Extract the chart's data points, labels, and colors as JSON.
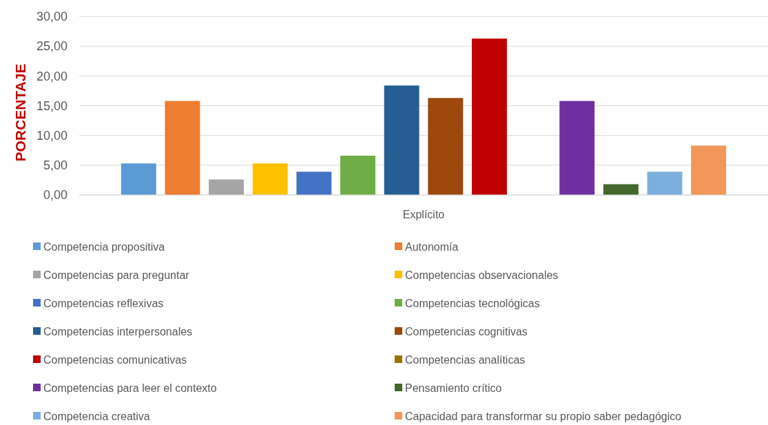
{
  "chart_data": {
    "type": "bar",
    "ylabel": "PORCENTAJE",
    "categories": [
      "Explícito"
    ],
    "ylim": [
      0,
      30
    ],
    "yticks": [
      {
        "value": 0,
        "label": "0,00"
      },
      {
        "value": 5,
        "label": "5,00"
      },
      {
        "value": 10,
        "label": "10,00"
      },
      {
        "value": 15,
        "label": "15,00"
      },
      {
        "value": 20,
        "label": "20,00"
      },
      {
        "value": 25,
        "label": "25,00"
      },
      {
        "value": 30,
        "label": "30,00"
      }
    ],
    "grid": "y",
    "legend": "bottom",
    "series": [
      {
        "name": "Competencia propositiva",
        "color": "#5b9bd5",
        "values": [
          5.3
        ]
      },
      {
        "name": "Autonomía",
        "color": "#ed7d31",
        "values": [
          15.8
        ]
      },
      {
        "name": "Competencias para preguntar",
        "color": "#a5a5a5",
        "values": [
          2.6
        ]
      },
      {
        "name": "Competencias observacionales",
        "color": "#ffc000",
        "values": [
          5.3
        ]
      },
      {
        "name": "Competencias reflexivas",
        "color": "#4472c4",
        "values": [
          3.9
        ]
      },
      {
        "name": "Competencias tecnológicas",
        "color": "#70ad47",
        "values": [
          6.6
        ]
      },
      {
        "name": "Competencias interpersonales",
        "color": "#255e91",
        "values": [
          18.4
        ]
      },
      {
        "name": "Competencias cognitivas",
        "color": "#9e480e",
        "values": [
          16.3
        ]
      },
      {
        "name": "Competencias comunicativas",
        "color": "#c00000",
        "values": [
          26.3
        ]
      },
      {
        "name": "Competencias analíticas",
        "color": "#997300",
        "values": [
          0
        ]
      },
      {
        "name": "Competencias para leer el contexto",
        "color": "#7030a0",
        "values": [
          15.8
        ]
      },
      {
        "name": "Pensamiento crítico",
        "color": "#43682b",
        "values": [
          1.8
        ]
      },
      {
        "name": "Competencia creativa",
        "color": "#7cafdd",
        "values": [
          3.9
        ]
      },
      {
        "name": "Capacidad para transformar su propio saber pedagógico",
        "color": "#f1975a",
        "values": [
          8.3
        ]
      }
    ]
  }
}
